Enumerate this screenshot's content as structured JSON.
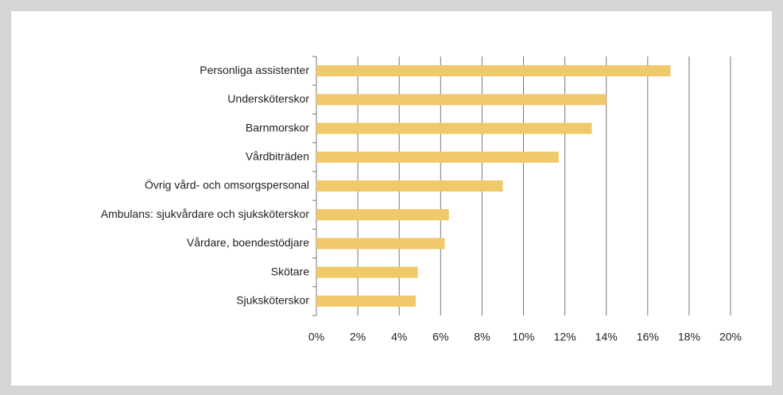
{
  "chart_data": {
    "type": "hbar",
    "categories": [
      "Personliga assistenter",
      "Undersköterskor",
      "Barnmorskor",
      "Vårdbiträden",
      "Övrig vård- och omsorgspersonal",
      "Ambulans: sjukvårdare och sjuksköterskor",
      "Vårdare, boendestödjare",
      "Skötare",
      "Sjuksköterskor"
    ],
    "values": [
      17.1,
      14.0,
      13.3,
      11.7,
      9.0,
      6.4,
      6.2,
      4.9,
      4.8
    ],
    "color": "#f0ca6a",
    "xlim": [
      0,
      20
    ],
    "xticks": [
      {
        "value": 0,
        "label": "0%"
      },
      {
        "value": 2,
        "label": "2%"
      },
      {
        "value": 4,
        "label": "4%"
      },
      {
        "value": 6,
        "label": "6%"
      },
      {
        "value": 8,
        "label": "8%"
      },
      {
        "value": 10,
        "label": "10%"
      },
      {
        "value": 12,
        "label": "12%"
      },
      {
        "value": 14,
        "label": "14%"
      },
      {
        "value": 16,
        "label": "16%"
      },
      {
        "value": 18,
        "label": "18%"
      },
      {
        "value": 20,
        "label": "20%"
      }
    ],
    "grid": true
  }
}
